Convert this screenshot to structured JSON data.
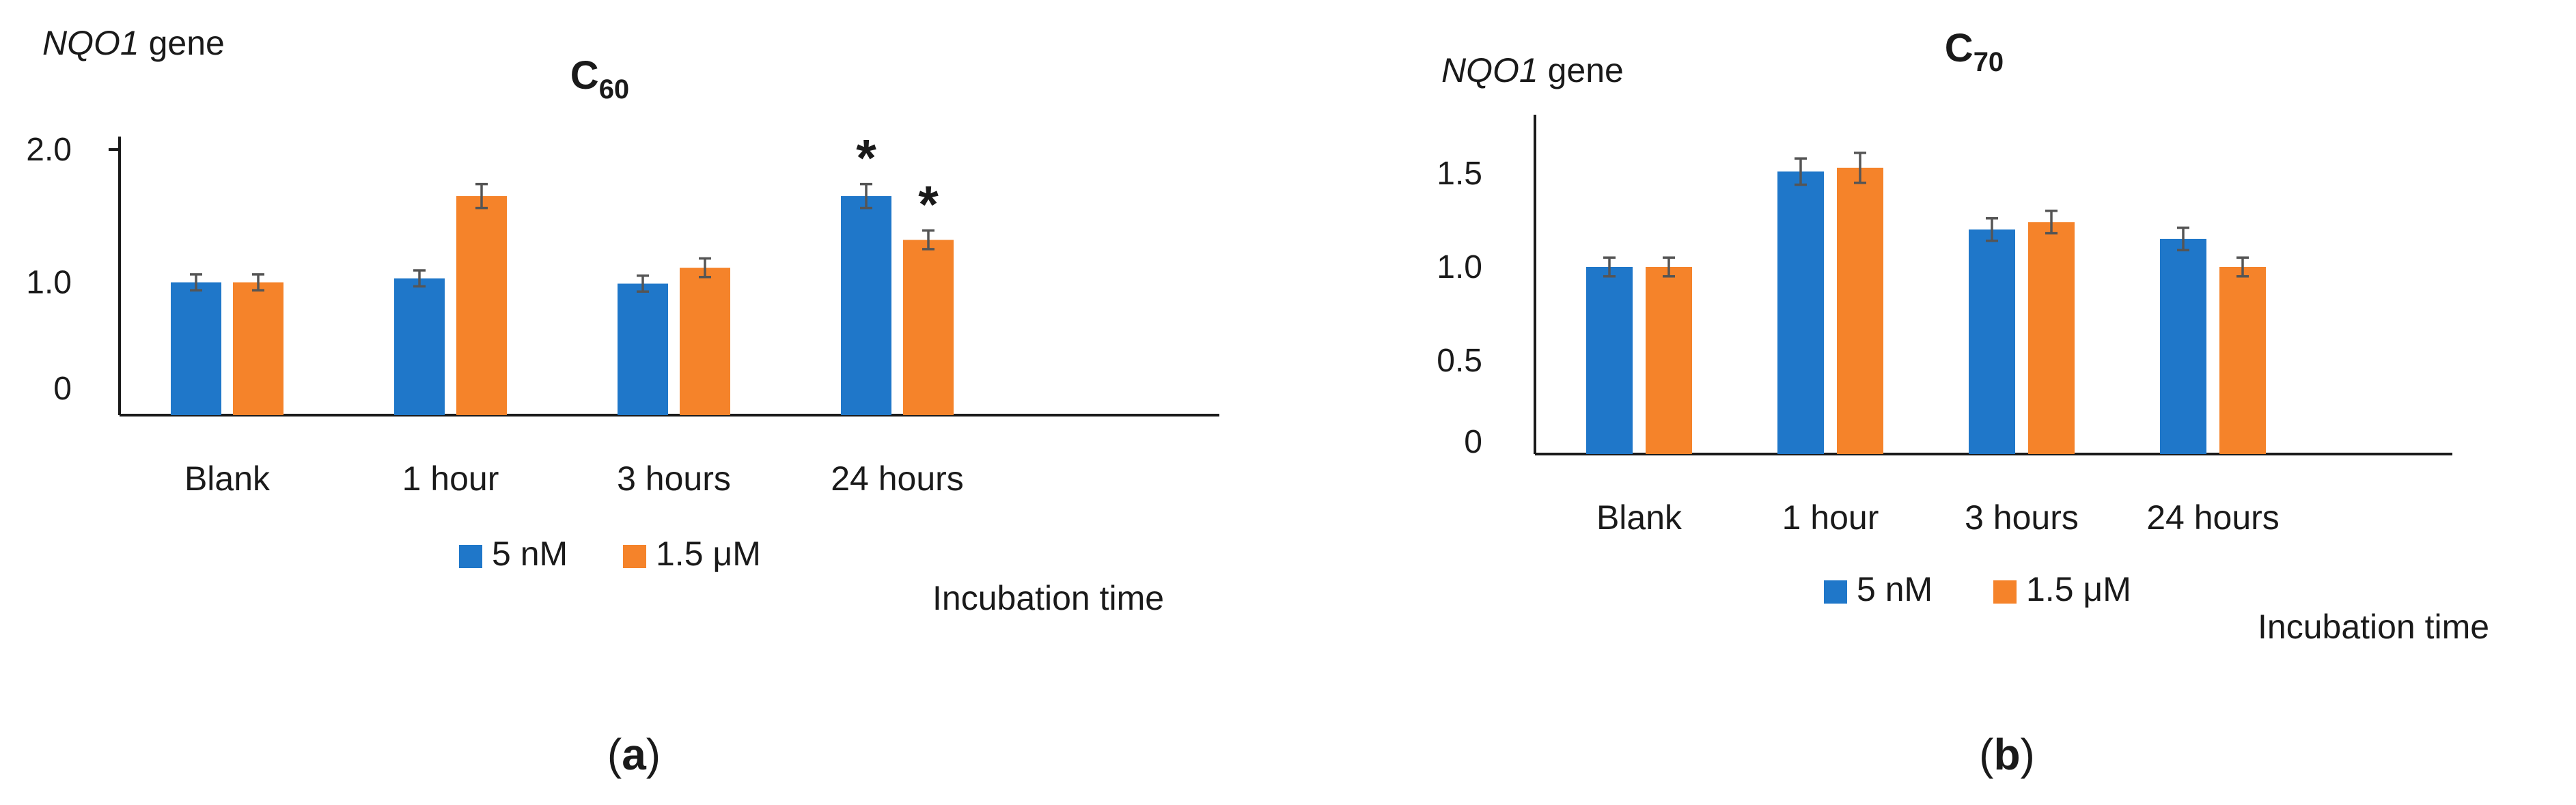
{
  "colors": {
    "series_1": "#1f77c9",
    "series_2": "#f5832a"
  },
  "chart_data": [
    {
      "type": "bar",
      "panel_label": "a",
      "title": "C",
      "title_subscript": "60",
      "ylabel_gene": "NQO1",
      "ylabel_suffix": " gene",
      "xlabel": "Incubation time",
      "categories": [
        "Blank",
        "1 hour",
        "3 hours",
        "24 hours"
      ],
      "ylim": [
        0,
        2.0
      ],
      "yticks": [
        0,
        1.0,
        2.0
      ],
      "ytick_labels": [
        "0",
        "1.0",
        "2.0"
      ],
      "series": [
        {
          "name": "5 nM",
          "values": [
            1.0,
            1.03,
            0.99,
            1.65
          ],
          "errors": [
            0.06,
            0.06,
            0.06,
            0.09
          ],
          "significant": [
            false,
            false,
            false,
            true
          ]
        },
        {
          "name": "1.5  μM",
          "values": [
            1.0,
            1.65,
            1.11,
            1.32
          ],
          "errors": [
            0.06,
            0.09,
            0.07,
            0.07
          ],
          "significant": [
            false,
            false,
            false,
            true
          ]
        }
      ],
      "significance_marker": "*"
    },
    {
      "type": "bar",
      "panel_label": "b",
      "title": "C",
      "title_subscript": "70",
      "ylabel_gene": "NQO1",
      "ylabel_suffix": " gene",
      "xlabel": "Incubation time",
      "categories": [
        "Blank",
        "1 hour",
        "3 hours",
        "24 hours"
      ],
      "ylim": [
        0,
        1.8
      ],
      "yticks": [
        0,
        0.5,
        1.0,
        1.5
      ],
      "ytick_labels": [
        "0",
        "0.5",
        "1.0",
        "1.5"
      ],
      "series": [
        {
          "name": "5 nM",
          "values": [
            1.0,
            1.51,
            1.2,
            1.15
          ],
          "errors": [
            0.05,
            0.07,
            0.06,
            0.06
          ],
          "significant": [
            false,
            false,
            false,
            false
          ]
        },
        {
          "name": "1.5  μM",
          "values": [
            1.0,
            1.53,
            1.24,
            1.0
          ],
          "errors": [
            0.05,
            0.08,
            0.06,
            0.05
          ],
          "significant": [
            false,
            false,
            false,
            false
          ]
        }
      ],
      "significance_marker": "*"
    }
  ]
}
